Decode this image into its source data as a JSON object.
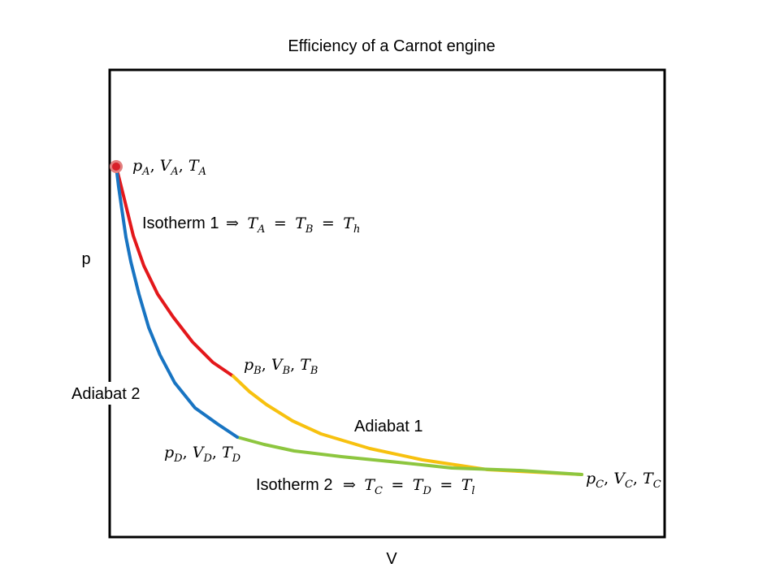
{
  "title": "Efficiency of a Carnot engine",
  "axes": {
    "ylabel": "p",
    "xlabel": "V"
  },
  "colors": {
    "isotherm_hot": "#e3181b",
    "adiabat_1": "#f7c10f",
    "isotherm_cold": "#8dc63f",
    "adiabat_2": "#1874c2",
    "marker_fill": "#d8202a",
    "marker_stroke": "#e38080",
    "frame": "#000000"
  },
  "states": {
    "A": {
      "p": "p",
      "V": "V",
      "T": "T",
      "sub": "A"
    },
    "B": {
      "p": "p",
      "V": "V",
      "T": "T",
      "sub": "B"
    },
    "C": {
      "p": "p",
      "V": "V",
      "T": "T",
      "sub": "C"
    },
    "D": {
      "p": "p",
      "V": "V",
      "T": "T",
      "sub": "D"
    }
  },
  "processes": {
    "isotherm1": {
      "label": "Isotherm 1",
      "arrow": "⇒",
      "t1": "T",
      "s1": "A",
      "eq": "=",
      "t2": "T",
      "s2": "B",
      "t3": "T",
      "s3": "h"
    },
    "adiabat1": {
      "label": "Adiabat 1"
    },
    "isotherm2": {
      "label": "Isotherm 2",
      "arrow": "⇒",
      "t1": "T",
      "s1": "C",
      "eq": "=",
      "t2": "T",
      "s2": "D",
      "t3": "T",
      "s3": "l"
    },
    "adiabat2": {
      "label": "Adiabat 2"
    }
  }
}
